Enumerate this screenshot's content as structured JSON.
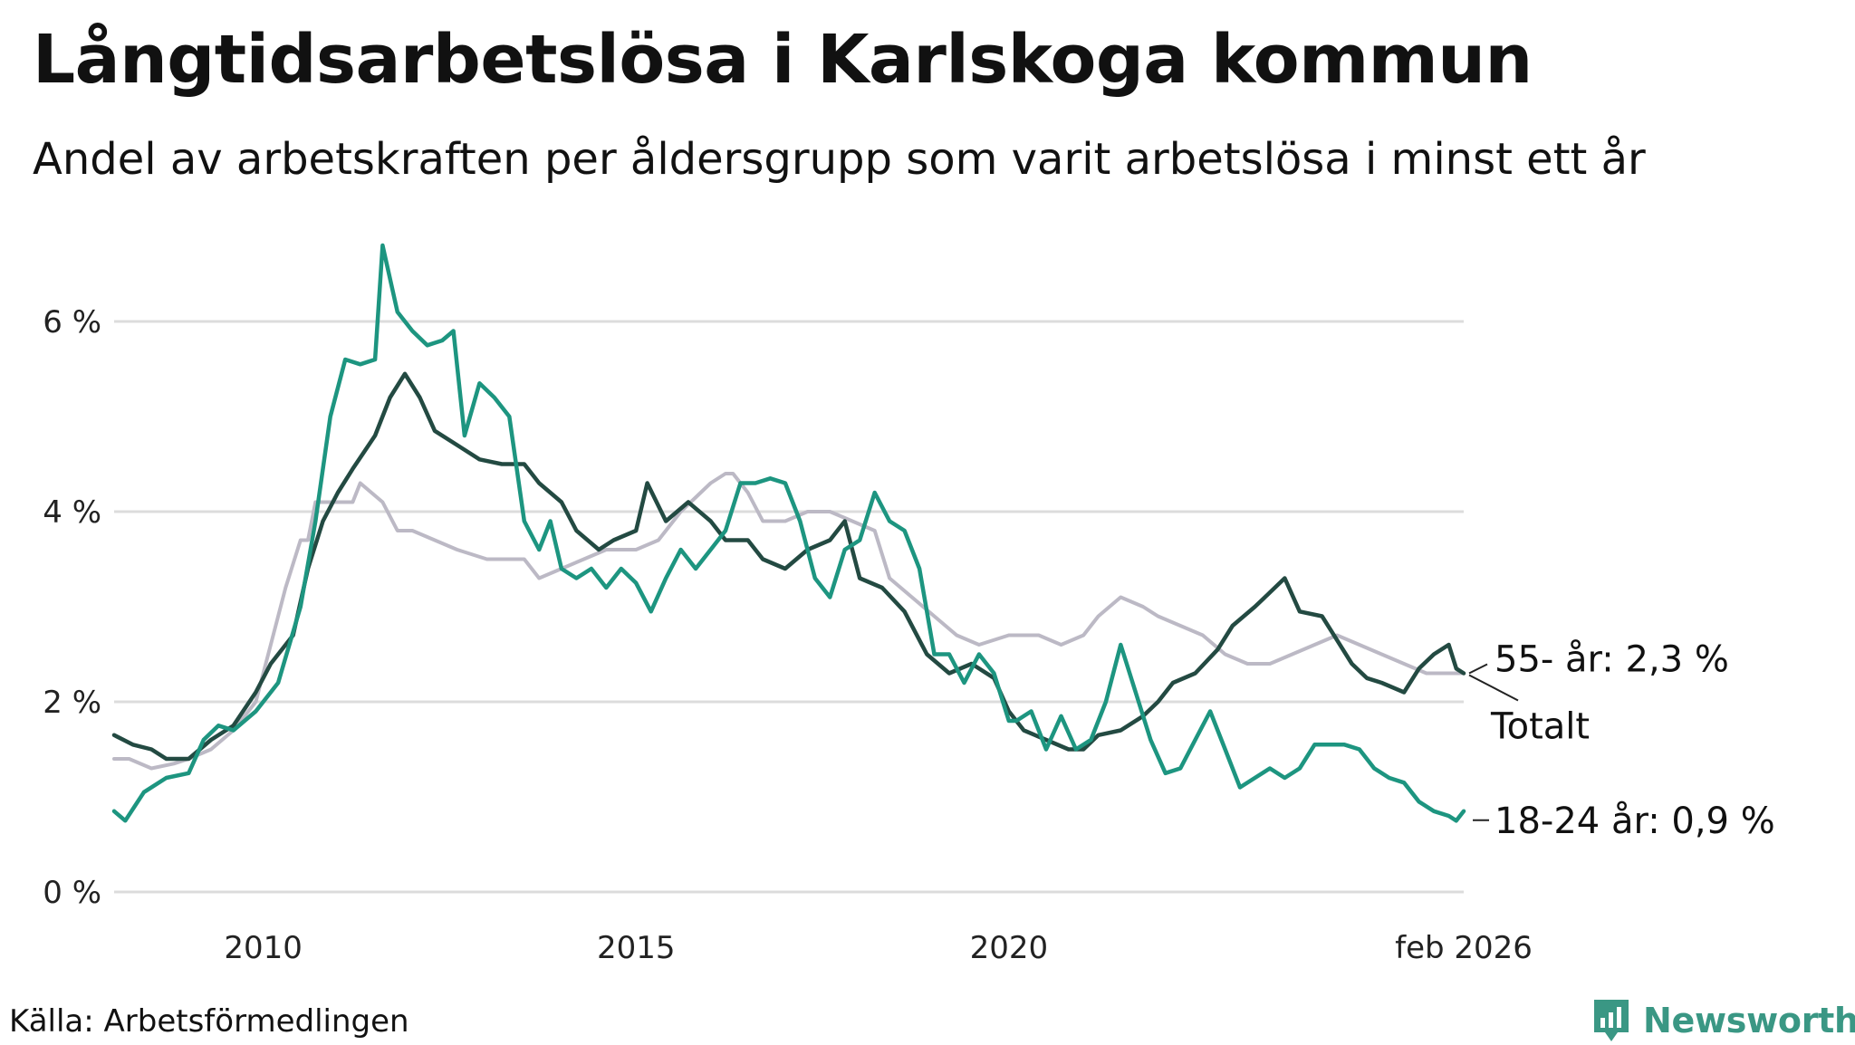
{
  "title": "Långtidsarbetslösa i Karlskoga kommun",
  "subtitle": "Andel av arbetskraften per åldersgrupp som varit arbetslösa i minst ett år",
  "source": "Källa: Arbetsförmedlingen",
  "logo_text": "Newsworthy",
  "colors": {
    "total": "#bcb9c5",
    "age55": "#234a42",
    "age18": "#1d9580",
    "grid": "#dcdcdc",
    "logo": "#3a9784"
  },
  "chart_data": {
    "type": "line",
    "title": "Långtidsarbetslösa i Karlskoga kommun",
    "xlabel": "",
    "ylabel": "",
    "x_range": [
      2008.0,
      2026.1
    ],
    "ylim": [
      0,
      7
    ],
    "y_ticks": [
      0,
      2,
      4,
      6
    ],
    "y_tick_labels": [
      "0 %",
      "2 %",
      "4 %",
      "6 %"
    ],
    "x_ticks": [
      2010,
      2015,
      2020,
      2026.1
    ],
    "x_tick_labels": [
      "2010",
      "2015",
      "2020",
      "feb 2026"
    ],
    "grid": "horizontal",
    "series": [
      {
        "name": "Totalt",
        "label": "Totalt",
        "color_key": "total",
        "points": [
          [
            2008.0,
            1.4
          ],
          [
            2008.2,
            1.4
          ],
          [
            2008.5,
            1.3
          ],
          [
            2008.8,
            1.35
          ],
          [
            2009.0,
            1.4
          ],
          [
            2009.3,
            1.5
          ],
          [
            2009.6,
            1.7
          ],
          [
            2009.9,
            2.0
          ],
          [
            2010.1,
            2.6
          ],
          [
            2010.3,
            3.2
          ],
          [
            2010.5,
            3.7
          ],
          [
            2010.6,
            3.7
          ],
          [
            2010.7,
            4.1
          ],
          [
            2011.0,
            4.1
          ],
          [
            2011.2,
            4.1
          ],
          [
            2011.3,
            4.3
          ],
          [
            2011.6,
            4.1
          ],
          [
            2011.8,
            3.8
          ],
          [
            2012.0,
            3.8
          ],
          [
            2012.3,
            3.7
          ],
          [
            2012.6,
            3.6
          ],
          [
            2013.0,
            3.5
          ],
          [
            2013.5,
            3.5
          ],
          [
            2013.7,
            3.3
          ],
          [
            2014.0,
            3.4
          ],
          [
            2014.3,
            3.5
          ],
          [
            2014.6,
            3.6
          ],
          [
            2015.0,
            3.6
          ],
          [
            2015.3,
            3.7
          ],
          [
            2015.6,
            4.0
          ],
          [
            2016.0,
            4.3
          ],
          [
            2016.2,
            4.4
          ],
          [
            2016.3,
            4.4
          ],
          [
            2016.5,
            4.2
          ],
          [
            2016.7,
            3.9
          ],
          [
            2017.0,
            3.9
          ],
          [
            2017.3,
            4.0
          ],
          [
            2017.6,
            4.0
          ],
          [
            2017.9,
            3.9
          ],
          [
            2018.2,
            3.8
          ],
          [
            2018.4,
            3.3
          ],
          [
            2018.7,
            3.1
          ],
          [
            2019.0,
            2.9
          ],
          [
            2019.3,
            2.7
          ],
          [
            2019.6,
            2.6
          ],
          [
            2020.0,
            2.7
          ],
          [
            2020.4,
            2.7
          ],
          [
            2020.7,
            2.6
          ],
          [
            2021.0,
            2.7
          ],
          [
            2021.2,
            2.9
          ],
          [
            2021.5,
            3.1
          ],
          [
            2021.8,
            3.0
          ],
          [
            2022.0,
            2.9
          ],
          [
            2022.3,
            2.8
          ],
          [
            2022.6,
            2.7
          ],
          [
            2022.9,
            2.5
          ],
          [
            2023.2,
            2.4
          ],
          [
            2023.5,
            2.4
          ],
          [
            2023.8,
            2.5
          ],
          [
            2024.1,
            2.6
          ],
          [
            2024.4,
            2.7
          ],
          [
            2024.7,
            2.6
          ],
          [
            2025.0,
            2.5
          ],
          [
            2025.3,
            2.4
          ],
          [
            2025.6,
            2.3
          ],
          [
            2025.8,
            2.3
          ],
          [
            2026.1,
            2.3
          ]
        ]
      },
      {
        "name": "55- år",
        "label": "55- år: 2,3 %",
        "latest_value": 2.3,
        "color_key": "age55",
        "points": [
          [
            2008.0,
            1.65
          ],
          [
            2008.25,
            1.55
          ],
          [
            2008.5,
            1.5
          ],
          [
            2008.7,
            1.4
          ],
          [
            2009.0,
            1.4
          ],
          [
            2009.3,
            1.6
          ],
          [
            2009.6,
            1.75
          ],
          [
            2009.9,
            2.1
          ],
          [
            2010.1,
            2.4
          ],
          [
            2010.4,
            2.7
          ],
          [
            2010.6,
            3.4
          ],
          [
            2010.8,
            3.9
          ],
          [
            2011.0,
            4.2
          ],
          [
            2011.2,
            4.45
          ],
          [
            2011.5,
            4.8
          ],
          [
            2011.7,
            5.2
          ],
          [
            2011.9,
            5.45
          ],
          [
            2012.1,
            5.2
          ],
          [
            2012.3,
            4.85
          ],
          [
            2012.6,
            4.7
          ],
          [
            2012.9,
            4.55
          ],
          [
            2013.2,
            4.5
          ],
          [
            2013.5,
            4.5
          ],
          [
            2013.7,
            4.3
          ],
          [
            2014.0,
            4.1
          ],
          [
            2014.2,
            3.8
          ],
          [
            2014.5,
            3.6
          ],
          [
            2014.7,
            3.7
          ],
          [
            2015.0,
            3.8
          ],
          [
            2015.15,
            4.3
          ],
          [
            2015.4,
            3.9
          ],
          [
            2015.7,
            4.1
          ],
          [
            2016.0,
            3.9
          ],
          [
            2016.2,
            3.7
          ],
          [
            2016.5,
            3.7
          ],
          [
            2016.7,
            3.5
          ],
          [
            2017.0,
            3.4
          ],
          [
            2017.3,
            3.6
          ],
          [
            2017.6,
            3.7
          ],
          [
            2017.8,
            3.9
          ],
          [
            2018.0,
            3.3
          ],
          [
            2018.3,
            3.2
          ],
          [
            2018.6,
            2.95
          ],
          [
            2018.9,
            2.5
          ],
          [
            2019.2,
            2.3
          ],
          [
            2019.5,
            2.4
          ],
          [
            2019.8,
            2.25
          ],
          [
            2020.0,
            1.9
          ],
          [
            2020.2,
            1.7
          ],
          [
            2020.5,
            1.6
          ],
          [
            2020.8,
            1.5
          ],
          [
            2021.0,
            1.5
          ],
          [
            2021.2,
            1.65
          ],
          [
            2021.5,
            1.7
          ],
          [
            2021.8,
            1.85
          ],
          [
            2022.0,
            2.0
          ],
          [
            2022.2,
            2.2
          ],
          [
            2022.5,
            2.3
          ],
          [
            2022.8,
            2.55
          ],
          [
            2023.0,
            2.8
          ],
          [
            2023.3,
            3.0
          ],
          [
            2023.5,
            3.15
          ],
          [
            2023.7,
            3.3
          ],
          [
            2023.9,
            2.95
          ],
          [
            2024.2,
            2.9
          ],
          [
            2024.4,
            2.65
          ],
          [
            2024.6,
            2.4
          ],
          [
            2024.8,
            2.25
          ],
          [
            2025.0,
            2.2
          ],
          [
            2025.3,
            2.1
          ],
          [
            2025.5,
            2.35
          ],
          [
            2025.7,
            2.5
          ],
          [
            2025.9,
            2.6
          ],
          [
            2026.0,
            2.35
          ],
          [
            2026.1,
            2.3
          ]
        ]
      },
      {
        "name": "18-24 år",
        "label": "18-24 år: 0,9 %",
        "latest_value": 0.9,
        "color_key": "age18",
        "points": [
          [
            2008.0,
            0.85
          ],
          [
            2008.15,
            0.75
          ],
          [
            2008.4,
            1.05
          ],
          [
            2008.7,
            1.2
          ],
          [
            2009.0,
            1.25
          ],
          [
            2009.2,
            1.6
          ],
          [
            2009.4,
            1.75
          ],
          [
            2009.6,
            1.7
          ],
          [
            2009.9,
            1.9
          ],
          [
            2010.2,
            2.2
          ],
          [
            2010.5,
            3.0
          ],
          [
            2010.7,
            3.9
          ],
          [
            2010.9,
            5.0
          ],
          [
            2011.1,
            5.6
          ],
          [
            2011.3,
            5.55
          ],
          [
            2011.5,
            5.6
          ],
          [
            2011.6,
            6.8
          ],
          [
            2011.8,
            6.1
          ],
          [
            2012.0,
            5.9
          ],
          [
            2012.2,
            5.75
          ],
          [
            2012.4,
            5.8
          ],
          [
            2012.55,
            5.9
          ],
          [
            2012.7,
            4.8
          ],
          [
            2012.9,
            5.35
          ],
          [
            2013.1,
            5.2
          ],
          [
            2013.3,
            5.0
          ],
          [
            2013.5,
            3.9
          ],
          [
            2013.7,
            3.6
          ],
          [
            2013.85,
            3.9
          ],
          [
            2014.0,
            3.4
          ],
          [
            2014.2,
            3.3
          ],
          [
            2014.4,
            3.4
          ],
          [
            2014.6,
            3.2
          ],
          [
            2014.8,
            3.4
          ],
          [
            2015.0,
            3.25
          ],
          [
            2015.2,
            2.95
          ],
          [
            2015.4,
            3.3
          ],
          [
            2015.6,
            3.6
          ],
          [
            2015.8,
            3.4
          ],
          [
            2016.0,
            3.6
          ],
          [
            2016.2,
            3.8
          ],
          [
            2016.4,
            4.3
          ],
          [
            2016.6,
            4.3
          ],
          [
            2016.8,
            4.35
          ],
          [
            2017.0,
            4.3
          ],
          [
            2017.2,
            3.9
          ],
          [
            2017.4,
            3.3
          ],
          [
            2017.6,
            3.1
          ],
          [
            2017.8,
            3.6
          ],
          [
            2018.0,
            3.7
          ],
          [
            2018.2,
            4.2
          ],
          [
            2018.4,
            3.9
          ],
          [
            2018.6,
            3.8
          ],
          [
            2018.8,
            3.4
          ],
          [
            2019.0,
            2.5
          ],
          [
            2019.2,
            2.5
          ],
          [
            2019.4,
            2.2
          ],
          [
            2019.6,
            2.5
          ],
          [
            2019.8,
            2.3
          ],
          [
            2020.0,
            1.8
          ],
          [
            2020.1,
            1.8
          ],
          [
            2020.3,
            1.9
          ],
          [
            2020.5,
            1.5
          ],
          [
            2020.7,
            1.85
          ],
          [
            2020.9,
            1.5
          ],
          [
            2021.1,
            1.6
          ],
          [
            2021.3,
            2.0
          ],
          [
            2021.5,
            2.6
          ],
          [
            2021.7,
            2.1
          ],
          [
            2021.9,
            1.6
          ],
          [
            2022.1,
            1.25
          ],
          [
            2022.3,
            1.3
          ],
          [
            2022.5,
            1.6
          ],
          [
            2022.7,
            1.9
          ],
          [
            2022.9,
            1.5
          ],
          [
            2023.1,
            1.1
          ],
          [
            2023.3,
            1.2
          ],
          [
            2023.5,
            1.3
          ],
          [
            2023.7,
            1.2
          ],
          [
            2023.9,
            1.3
          ],
          [
            2024.1,
            1.55
          ],
          [
            2024.3,
            1.55
          ],
          [
            2024.5,
            1.55
          ],
          [
            2024.7,
            1.5
          ],
          [
            2024.9,
            1.3
          ],
          [
            2025.1,
            1.2
          ],
          [
            2025.3,
            1.15
          ],
          [
            2025.5,
            0.95
          ],
          [
            2025.7,
            0.85
          ],
          [
            2025.9,
            0.8
          ],
          [
            2026.0,
            0.75
          ],
          [
            2026.1,
            0.85
          ]
        ]
      }
    ]
  }
}
